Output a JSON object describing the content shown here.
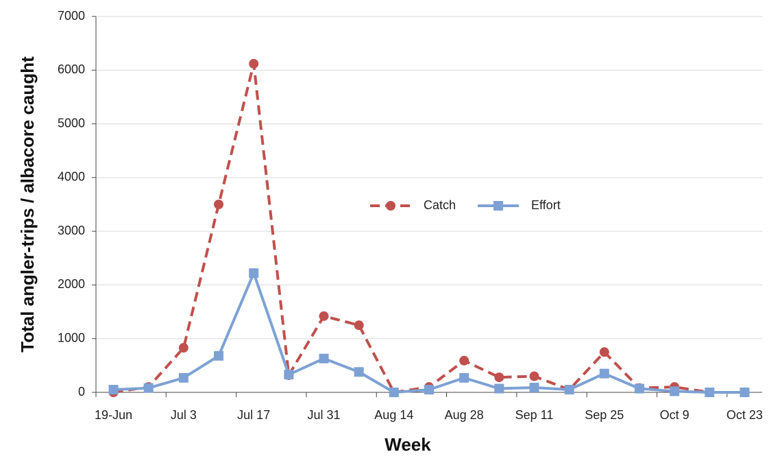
{
  "chart_data": {
    "type": "line",
    "xlabel": "Week",
    "ylabel": "Total angler-trips / albacore caught",
    "categories": [
      "19-Jun",
      null,
      "Jul 3",
      null,
      "Jul 17",
      null,
      "Jul 31",
      null,
      "Aug 14",
      null,
      "Aug 28",
      null,
      "Sep 11",
      null,
      "Sep 25",
      null,
      "Oct 9",
      null,
      "Oct 23"
    ],
    "series": [
      {
        "name": "Catch",
        "color": "#c0504d",
        "line_style": "dashed",
        "marker": "circle",
        "values": [
          0,
          100,
          830,
          3500,
          6120,
          320,
          1420,
          1250,
          0,
          100,
          590,
          280,
          300,
          50,
          750,
          80,
          100,
          0,
          0
        ]
      },
      {
        "name": "Effort",
        "color": "#7da1d4",
        "line_style": "solid",
        "marker": "square",
        "values": [
          50,
          80,
          270,
          680,
          2220,
          330,
          630,
          380,
          0,
          50,
          270,
          70,
          90,
          50,
          350,
          70,
          20,
          0,
          0
        ]
      }
    ],
    "ylim": [
      0,
      7000
    ],
    "yticks": [
      0,
      1000,
      2000,
      3000,
      4000,
      5000,
      6000,
      7000
    ],
    "grid": true,
    "legend_position": "center"
  }
}
